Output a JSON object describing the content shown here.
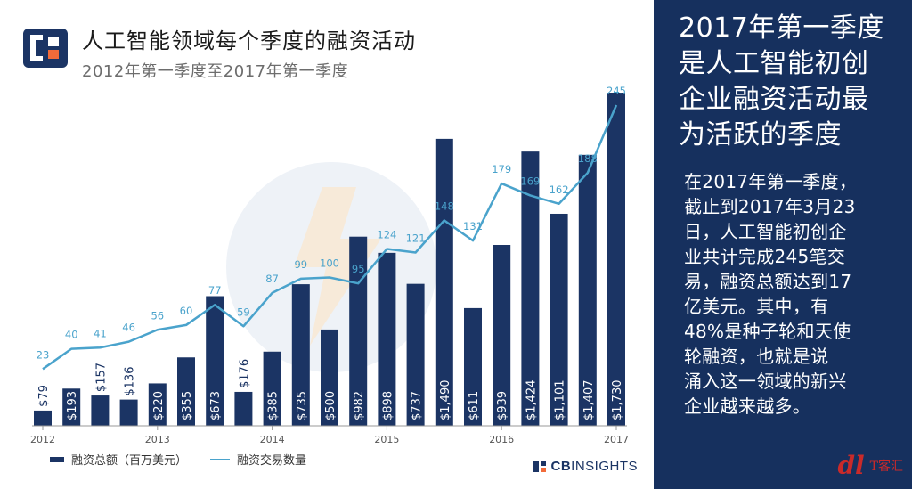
{
  "header": {
    "title": "人工智能领域每个季度的融资活动",
    "subtitle": "2012年第一季度至2017年第一季度"
  },
  "side_panel": {
    "headline_lines": [
      "2017年第一季度",
      "是人工智能初创",
      "企业融资活动最",
      "为活跃的季度"
    ],
    "body_lines": [
      "在2017年第一季度，",
      "截止到2017年3月23",
      "日，人工智能初创企",
      "业共计完成245笔交",
      "易，融资总额达到17",
      "亿美元。其中，有",
      "48%是种子轮和天使",
      "轮融资，也就是说",
      "涌入这一领域的新兴",
      "企业越来越多。"
    ]
  },
  "legend": {
    "bar_label": "融资总额（百万美元）",
    "line_label": "融资交易数量"
  },
  "source": {
    "brand_prefix": "CB",
    "brand_suffix": "INSIGHTS"
  },
  "watermark": {
    "mark": "dl",
    "text": "T客汇"
  },
  "colors": {
    "bar": "#1b3464",
    "line": "#4aa3cc",
    "panel": "#16305e",
    "logo_orange": "#f26b3a"
  },
  "chart_data": {
    "type": "bar",
    "title": "人工智能领域每个季度的融资活动",
    "subtitle": "2012年第一季度至2017年第一季度",
    "xlabel": "",
    "ylabel": "",
    "x_tick_labels": [
      "2012",
      "2013",
      "2014",
      "2015",
      "2016",
      "2017"
    ],
    "x_tick_quarter_index": [
      0,
      4,
      8,
      12,
      16,
      20
    ],
    "categories": [
      "2012Q1",
      "2012Q2",
      "2012Q3",
      "2012Q4",
      "2013Q1",
      "2013Q2",
      "2013Q3",
      "2013Q4",
      "2014Q1",
      "2014Q2",
      "2014Q3",
      "2014Q4",
      "2015Q1",
      "2015Q2",
      "2015Q3",
      "2015Q4",
      "2016Q1",
      "2016Q2",
      "2016Q3",
      "2016Q4",
      "2017Q1"
    ],
    "series": [
      {
        "name": "融资总额（百万美元）",
        "type": "bar",
        "values": [
          79,
          193,
          157,
          136,
          220,
          355,
          673,
          176,
          385,
          735,
          500,
          982,
          898,
          737,
          1490,
          611,
          939,
          1424,
          1101,
          1407,
          1730
        ],
        "labels": [
          "$79",
          "$193",
          "$157",
          "$136",
          "$220",
          "$355",
          "$673",
          "$176",
          "$385",
          "$735",
          "$500",
          "$982",
          "$898",
          "$737",
          "$1,490",
          "$611",
          "$939",
          "$1,424",
          "$1,101",
          "$1,407",
          "$1,730"
        ]
      },
      {
        "name": "融资交易数量",
        "type": "line",
        "values": [
          23,
          40,
          41,
          46,
          56,
          60,
          77,
          59,
          87,
          99,
          100,
          95,
          124,
          121,
          148,
          131,
          179,
          169,
          162,
          188,
          245
        ]
      }
    ],
    "bar_ylim": [
      0,
      1730
    ],
    "line_ylim": [
      0,
      245
    ],
    "grid": false,
    "legend": "bottom-left"
  }
}
